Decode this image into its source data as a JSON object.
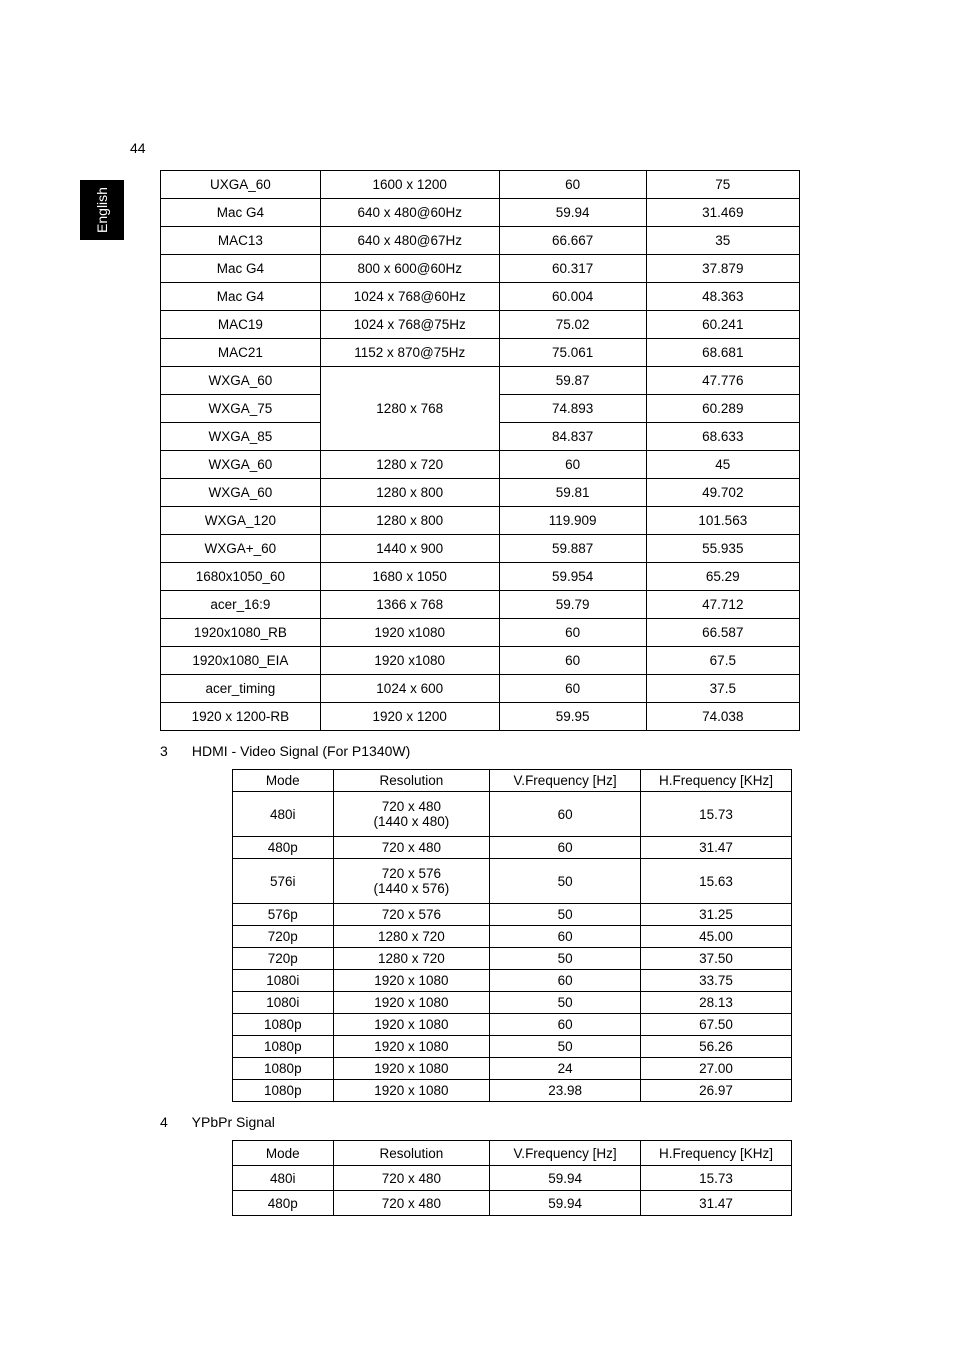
{
  "page_number": "44",
  "side_tab_label": "English",
  "table1": {
    "columns_width": [
      160,
      180,
      150,
      150
    ],
    "rows": [
      [
        "UXGA_60",
        "1600 x 1200",
        "60",
        "75"
      ],
      [
        "Mac G4",
        "640 x 480@60Hz",
        "59.94",
        "31.469"
      ],
      [
        "MAC13",
        "640 x 480@67Hz",
        "66.667",
        "35"
      ],
      [
        "Mac G4",
        "800 x 600@60Hz",
        "60.317",
        "37.879"
      ],
      [
        "Mac G4",
        "1024 x 768@60Hz",
        "60.004",
        "48.363"
      ],
      [
        "MAC19",
        "1024 x 768@75Hz",
        "75.02",
        "60.241"
      ],
      [
        "MAC21",
        "1152 x 870@75Hz",
        "75.061",
        "68.681"
      ],
      [
        "WXGA_60",
        "__merge_start__",
        "59.87",
        "47.776"
      ],
      [
        "WXGA_75",
        "1280 x 768",
        "74.893",
        "60.289"
      ],
      [
        "WXGA_85",
        "__merge_end__",
        "84.837",
        "68.633"
      ],
      [
        "WXGA_60",
        "1280 x 720",
        "60",
        "45"
      ],
      [
        "WXGA_60",
        "1280 x 800",
        "59.81",
        "49.702"
      ],
      [
        "WXGA_120",
        "1280 x 800",
        "119.909",
        "101.563"
      ],
      [
        "WXGA+_60",
        "1440 x 900",
        "59.887",
        "55.935"
      ],
      [
        "1680x1050_60",
        "1680 x 1050",
        "59.954",
        "65.29"
      ],
      [
        "acer_16:9",
        "1366 x 768",
        "59.79",
        "47.712"
      ],
      [
        "1920x1080_RB",
        "1920 x1080",
        "60",
        "66.587"
      ],
      [
        "1920x1080_EIA",
        "1920 x1080",
        "60",
        "67.5"
      ],
      [
        "acer_timing",
        "1024 x 600",
        "60",
        "37.5"
      ],
      [
        "1920 x 1200-RB",
        "1920 x 1200",
        "59.95",
        "74.038"
      ]
    ]
  },
  "section2": {
    "num": "3",
    "title": "HDMI - Video Signal (For P1340W)"
  },
  "table2": {
    "header": [
      "Mode",
      "Resolution",
      "V.Frequency [Hz]",
      "H.Frequency [KHz]"
    ],
    "rows": [
      {
        "cells": [
          "480i",
          "720 x 480\n(1440 x 480)",
          "60",
          "15.73"
        ],
        "tall": true
      },
      {
        "cells": [
          "480p",
          "720 x 480",
          "60",
          "31.47"
        ]
      },
      {
        "cells": [
          "576i",
          "720 x 576\n(1440 x 576)",
          "50",
          "15.63"
        ],
        "tall": true
      },
      {
        "cells": [
          "576p",
          "720 x 576",
          "50",
          "31.25"
        ]
      },
      {
        "cells": [
          "720p",
          "1280 x 720",
          "60",
          "45.00"
        ]
      },
      {
        "cells": [
          "720p",
          "1280 x 720",
          "50",
          "37.50"
        ]
      },
      {
        "cells": [
          "1080i",
          "1920 x 1080",
          "60",
          "33.75"
        ]
      },
      {
        "cells": [
          "1080i",
          "1920 x 1080",
          "50",
          "28.13"
        ]
      },
      {
        "cells": [
          "1080p",
          "1920 x 1080",
          "60",
          "67.50"
        ]
      },
      {
        "cells": [
          "1080p",
          "1920 x 1080",
          "50",
          "56.26"
        ]
      },
      {
        "cells": [
          "1080p",
          "1920 x 1080",
          "24",
          "27.00"
        ]
      },
      {
        "cells": [
          "1080p",
          "1920 x 1080",
          "23.98",
          "26.97"
        ]
      }
    ]
  },
  "section3": {
    "num": "4",
    "title": "YPbPr Signal"
  },
  "table3": {
    "header": [
      "Mode",
      "Resolution",
      "V.Frequency [Hz]",
      "H.Frequency [KHz]"
    ],
    "rows": [
      [
        "480i",
        "720 x 480",
        "59.94",
        "15.73"
      ],
      [
        "480p",
        "720 x 480",
        "59.94",
        "31.47"
      ]
    ]
  },
  "style": {
    "page_bg": "#ffffff",
    "text_color": "#000000",
    "border_color": "#000000",
    "tab_bg": "#000000",
    "tab_text": "#ffffff",
    "body_fontsize": 13.5
  }
}
